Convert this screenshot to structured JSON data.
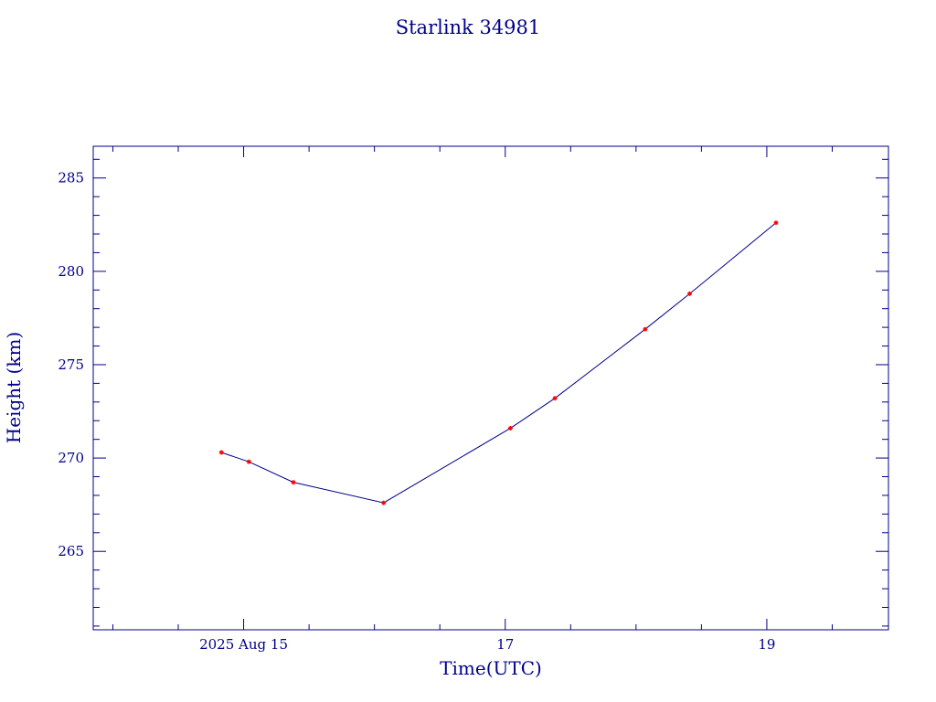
{
  "chart_data": {
    "type": "line",
    "title": "Starlink 34981",
    "xlabel": "Time(UTC)",
    "ylabel": "Height (km)",
    "x_axis": {
      "unit": "day",
      "range_days": [
        13.85,
        19.93
      ],
      "major_ticks": [
        {
          "day": 15,
          "label": "2025 Aug 15"
        },
        {
          "day": 17,
          "label": "17"
        },
        {
          "day": 19,
          "label": "19"
        }
      ],
      "minor_tick_every_days": 0.5
    },
    "y_axis": {
      "range": [
        260.8,
        286.7
      ],
      "major_ticks": [
        {
          "value": 265,
          "label": "265"
        },
        {
          "value": 270,
          "label": "270"
        },
        {
          "value": 275,
          "label": "275"
        },
        {
          "value": 280,
          "label": "280"
        },
        {
          "value": 285,
          "label": "285"
        }
      ],
      "minor_tick_every": 1
    },
    "series": [
      {
        "points": [
          {
            "day": 14.83,
            "value": 270.3
          },
          {
            "day": 15.04,
            "value": 269.8
          },
          {
            "day": 15.38,
            "value": 268.7
          },
          {
            "day": 16.07,
            "value": 267.6
          },
          {
            "day": 17.04,
            "value": 271.6
          },
          {
            "day": 17.38,
            "value": 273.2
          },
          {
            "day": 18.07,
            "value": 276.9
          },
          {
            "day": 18.41,
            "value": 278.8
          },
          {
            "day": 19.07,
            "value": 282.6
          }
        ]
      }
    ],
    "colors": {
      "axes": "#00008b",
      "line": "#00008b",
      "marker": "#ff0000"
    },
    "grid": false,
    "legend": "none"
  }
}
